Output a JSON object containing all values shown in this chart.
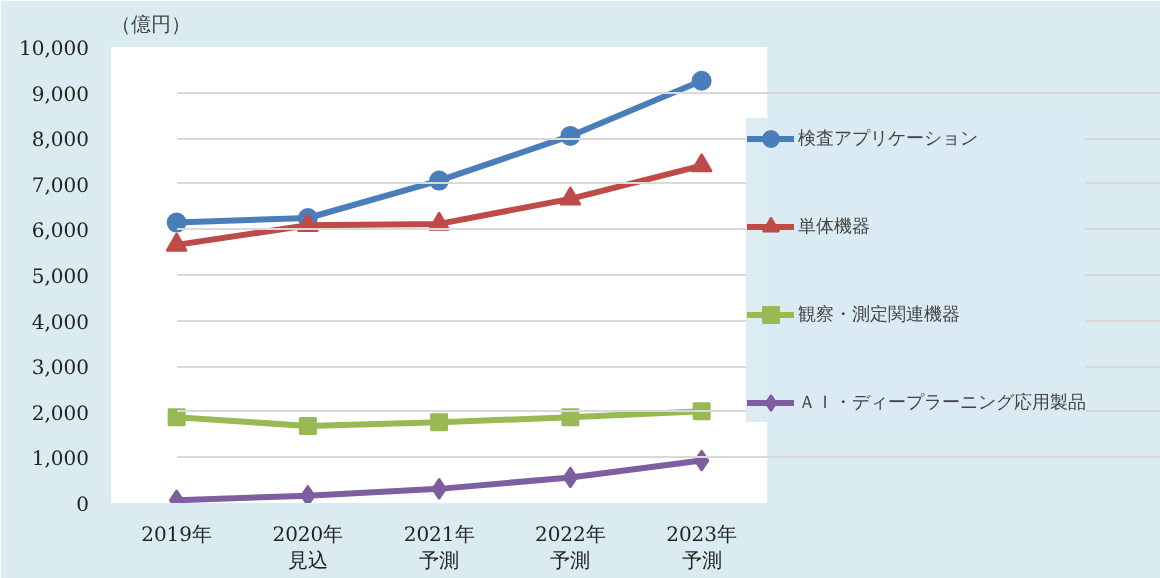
{
  "chart_data": {
    "type": "line",
    "ylabel": "（億円）",
    "categories": [
      "2019年",
      "2020年見込",
      "2021年予測",
      "2022年予測",
      "2023年予測"
    ],
    "series": [
      {
        "name": "検査アプリケーション",
        "color": "#4a7ebb",
        "marker": "circle",
        "values": [
          6150,
          6250,
          7070,
          8050,
          9260
        ]
      },
      {
        "name": "単体機器",
        "color": "#be4b48",
        "marker": "triangle",
        "values": [
          5660,
          6090,
          6120,
          6670,
          7400
        ]
      },
      {
        "name": "観察・測定関連機器",
        "color": "#98b954",
        "marker": "square",
        "values": [
          1880,
          1690,
          1770,
          1880,
          2010
        ]
      },
      {
        "name": "ＡＩ・ディープラーニング応用製品",
        "color": "#7d5fa0",
        "marker": "diamond",
        "values": [
          60,
          160,
          310,
          560,
          930
        ]
      }
    ],
    "ylim": [
      0,
      10000
    ],
    "yticks": [
      0,
      {
        "value": 1000,
        "label": "1,000"
      },
      {
        "value": 2000,
        "label": "2,000"
      },
      {
        "value": 3000,
        "label": "3,000"
      },
      {
        "value": 4000,
        "label": "4,000"
      },
      {
        "value": 5000,
        "label": "5,000"
      },
      {
        "value": 6000,
        "label": "6,000"
      },
      {
        "value": 7000,
        "label": "7,000"
      },
      {
        "value": 8000,
        "label": "8,000"
      },
      {
        "value": 9000,
        "label": "9,000"
      },
      {
        "value": 10000,
        "label": "10,000"
      }
    ],
    "grid": "y",
    "legend": "right",
    "line_style": "solid"
  }
}
